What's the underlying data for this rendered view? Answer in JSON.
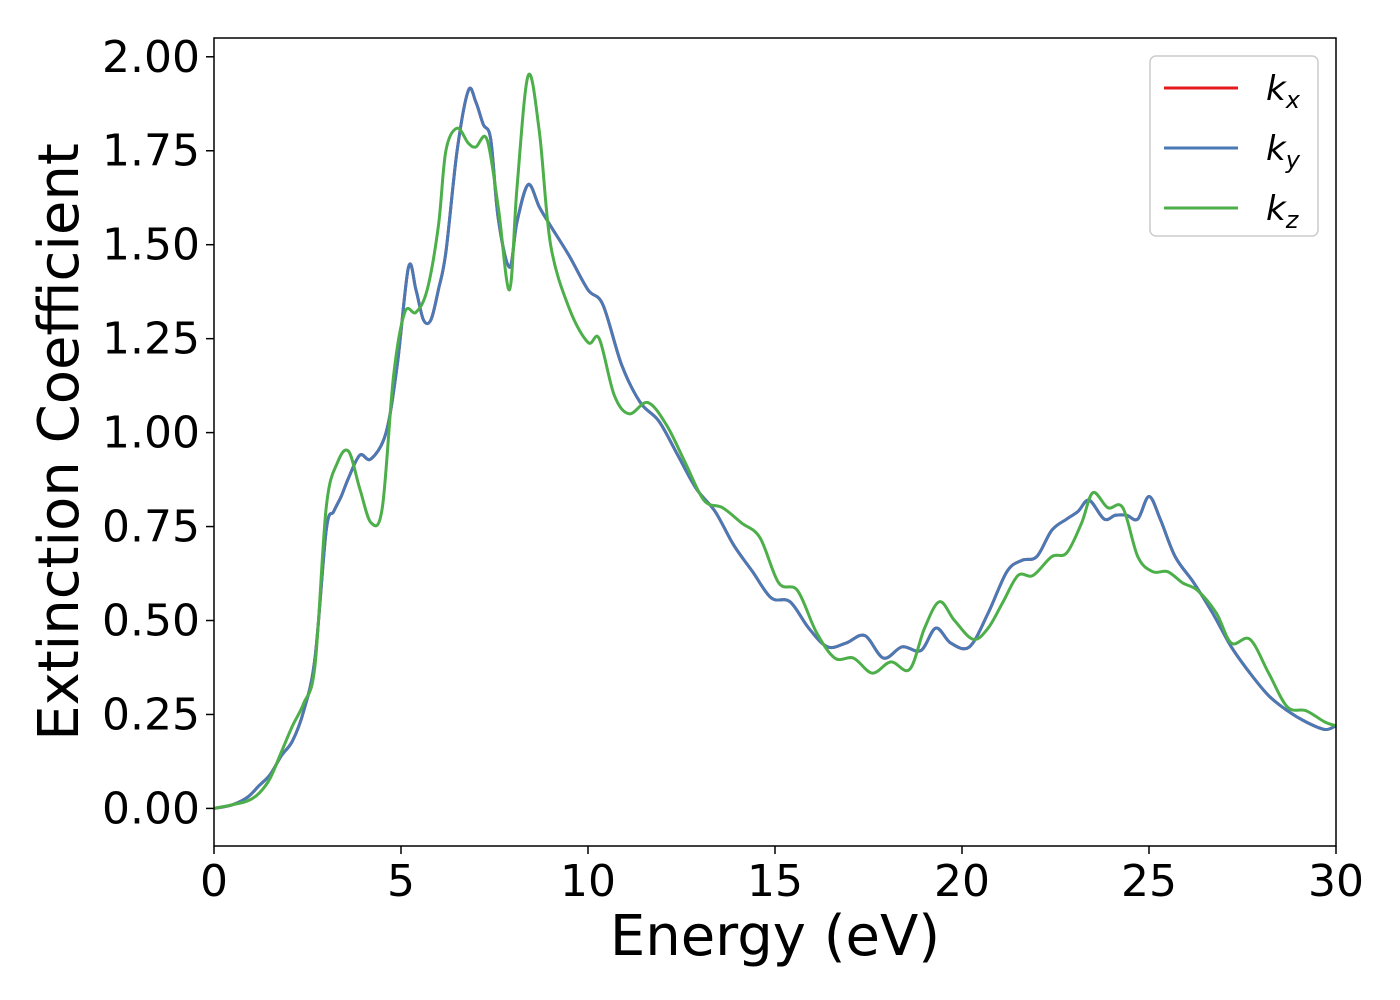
{
  "chart_data": {
    "type": "line",
    "title": "",
    "xlabel": "Energy (eV)",
    "ylabel": "Extinction Coefficient",
    "xlim": [
      0,
      30
    ],
    "ylim": [
      -0.1,
      2.05
    ],
    "x_ticks": [
      0,
      5,
      10,
      15,
      20,
      25,
      30
    ],
    "x_tick_labels": [
      "0",
      "5",
      "10",
      "15",
      "20",
      "25",
      "30"
    ],
    "y_ticks": [
      0,
      0.25,
      0.5,
      0.75,
      1.0,
      1.25,
      1.5,
      1.75,
      2.0
    ],
    "y_tick_labels": [
      "0.00",
      "0.25",
      "0.50",
      "0.75",
      "1.00",
      "1.25",
      "1.50",
      "1.75",
      "2.00"
    ],
    "grid": false,
    "legend": {
      "position": "top-right",
      "entries": [
        {
          "base": "k",
          "sub": "x",
          "color": "#e41a1c"
        },
        {
          "base": "k",
          "sub": "y",
          "color": "#4a7ab5"
        },
        {
          "base": "k",
          "sub": "z",
          "color": "#4daf4a"
        }
      ]
    },
    "series": [
      {
        "name": "kx",
        "color": "#e41a1c",
        "x": [
          0,
          0.5,
          0.9,
          1.2,
          1.5,
          1.8,
          2.1,
          2.4,
          2.7,
          3.0,
          3.2,
          3.4,
          3.6,
          3.9,
          4.2,
          4.6,
          4.9,
          5.2,
          5.4,
          5.6,
          5.8,
          6.0,
          6.2,
          6.5,
          6.8,
          7.0,
          7.2,
          7.4,
          7.6,
          7.9,
          8.1,
          8.4,
          8.7,
          9.0,
          9.5,
          10.0,
          10.4,
          10.9,
          11.4,
          11.9,
          12.4,
          12.9,
          13.4,
          13.9,
          14.4,
          14.9,
          15.4,
          15.9,
          16.4,
          16.9,
          17.4,
          17.9,
          18.4,
          18.9,
          19.3,
          19.7,
          20.2,
          20.7,
          21.2,
          21.6,
          22.0,
          22.4,
          22.8,
          23.1,
          23.4,
          23.8,
          24.1,
          24.4,
          24.7,
          25.0,
          25.3,
          25.7,
          26.2,
          26.7,
          27.2,
          27.7,
          28.2,
          28.7,
          29.2,
          29.7,
          30.0
        ],
        "values": [
          0,
          0.01,
          0.03,
          0.06,
          0.09,
          0.14,
          0.18,
          0.26,
          0.4,
          0.74,
          0.79,
          0.83,
          0.88,
          0.94,
          0.93,
          1.0,
          1.18,
          1.44,
          1.38,
          1.3,
          1.3,
          1.38,
          1.48,
          1.75,
          1.91,
          1.88,
          1.82,
          1.78,
          1.57,
          1.44,
          1.56,
          1.66,
          1.6,
          1.55,
          1.47,
          1.38,
          1.34,
          1.18,
          1.08,
          1.03,
          0.94,
          0.85,
          0.79,
          0.7,
          0.63,
          0.56,
          0.55,
          0.48,
          0.43,
          0.44,
          0.46,
          0.4,
          0.43,
          0.42,
          0.48,
          0.44,
          0.43,
          0.52,
          0.63,
          0.66,
          0.67,
          0.74,
          0.77,
          0.79,
          0.82,
          0.77,
          0.78,
          0.78,
          0.77,
          0.83,
          0.77,
          0.67,
          0.6,
          0.52,
          0.43,
          0.36,
          0.3,
          0.26,
          0.23,
          0.21,
          0.22
        ]
      },
      {
        "name": "ky",
        "color": "#4a7ab5",
        "x": [
          0,
          0.5,
          0.9,
          1.2,
          1.5,
          1.8,
          2.1,
          2.4,
          2.7,
          3.0,
          3.2,
          3.4,
          3.6,
          3.9,
          4.2,
          4.6,
          4.9,
          5.2,
          5.4,
          5.6,
          5.8,
          6.0,
          6.2,
          6.5,
          6.8,
          7.0,
          7.2,
          7.4,
          7.6,
          7.9,
          8.1,
          8.4,
          8.7,
          9.0,
          9.5,
          10.0,
          10.4,
          10.9,
          11.4,
          11.9,
          12.4,
          12.9,
          13.4,
          13.9,
          14.4,
          14.9,
          15.4,
          15.9,
          16.4,
          16.9,
          17.4,
          17.9,
          18.4,
          18.9,
          19.3,
          19.7,
          20.2,
          20.7,
          21.2,
          21.6,
          22.0,
          22.4,
          22.8,
          23.1,
          23.4,
          23.8,
          24.1,
          24.4,
          24.7,
          25.0,
          25.3,
          25.7,
          26.2,
          26.7,
          27.2,
          27.7,
          28.2,
          28.7,
          29.2,
          29.7,
          30.0
        ],
        "values": [
          0,
          0.01,
          0.03,
          0.06,
          0.09,
          0.14,
          0.18,
          0.26,
          0.4,
          0.74,
          0.79,
          0.83,
          0.88,
          0.94,
          0.93,
          1.0,
          1.18,
          1.44,
          1.38,
          1.3,
          1.3,
          1.38,
          1.48,
          1.75,
          1.91,
          1.88,
          1.82,
          1.78,
          1.57,
          1.44,
          1.56,
          1.66,
          1.6,
          1.55,
          1.47,
          1.38,
          1.34,
          1.18,
          1.08,
          1.03,
          0.94,
          0.85,
          0.79,
          0.7,
          0.63,
          0.56,
          0.55,
          0.48,
          0.43,
          0.44,
          0.46,
          0.4,
          0.43,
          0.42,
          0.48,
          0.44,
          0.43,
          0.52,
          0.63,
          0.66,
          0.67,
          0.74,
          0.77,
          0.79,
          0.82,
          0.77,
          0.78,
          0.78,
          0.77,
          0.83,
          0.77,
          0.67,
          0.6,
          0.52,
          0.43,
          0.36,
          0.3,
          0.26,
          0.23,
          0.21,
          0.22
        ]
      },
      {
        "name": "kz",
        "color": "#4daf4a",
        "x": [
          0,
          0.5,
          0.9,
          1.2,
          1.5,
          1.8,
          2.1,
          2.4,
          2.7,
          3.0,
          3.3,
          3.6,
          3.9,
          4.2,
          4.5,
          4.8,
          5.1,
          5.4,
          5.7,
          6.0,
          6.2,
          6.5,
          6.8,
          7.0,
          7.3,
          7.6,
          7.9,
          8.1,
          8.4,
          8.7,
          9.0,
          9.5,
          10.0,
          10.3,
          10.7,
          11.1,
          11.6,
          12.1,
          12.6,
          13.1,
          13.6,
          14.1,
          14.6,
          15.1,
          15.6,
          16.1,
          16.6,
          17.1,
          17.6,
          18.1,
          18.6,
          19.0,
          19.4,
          19.8,
          20.3,
          20.7,
          21.1,
          21.5,
          21.9,
          22.4,
          22.8,
          23.2,
          23.5,
          23.9,
          24.3,
          24.7,
          25.1,
          25.5,
          25.9,
          26.3,
          26.8,
          27.2,
          27.7,
          28.2,
          28.7,
          29.2,
          29.7,
          30.0
        ],
        "values": [
          0,
          0.01,
          0.02,
          0.04,
          0.08,
          0.15,
          0.22,
          0.28,
          0.38,
          0.8,
          0.92,
          0.95,
          0.85,
          0.76,
          0.8,
          1.15,
          1.32,
          1.32,
          1.38,
          1.55,
          1.75,
          1.81,
          1.77,
          1.76,
          1.78,
          1.6,
          1.38,
          1.65,
          1.95,
          1.8,
          1.5,
          1.33,
          1.24,
          1.25,
          1.1,
          1.05,
          1.08,
          1.02,
          0.92,
          0.82,
          0.8,
          0.76,
          0.72,
          0.6,
          0.58,
          0.47,
          0.4,
          0.4,
          0.36,
          0.39,
          0.37,
          0.48,
          0.55,
          0.5,
          0.45,
          0.48,
          0.55,
          0.62,
          0.62,
          0.67,
          0.68,
          0.76,
          0.84,
          0.8,
          0.8,
          0.67,
          0.63,
          0.63,
          0.6,
          0.58,
          0.52,
          0.44,
          0.45,
          0.36,
          0.27,
          0.26,
          0.23,
          0.22
        ]
      }
    ]
  }
}
